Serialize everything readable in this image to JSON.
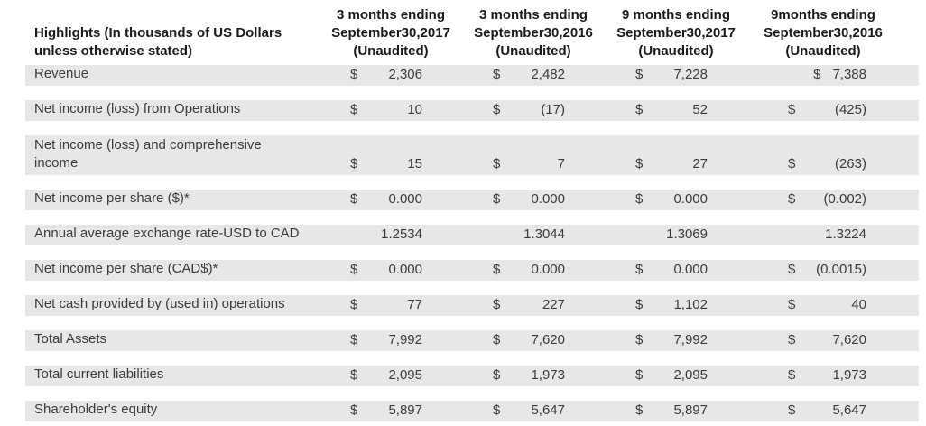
{
  "table": {
    "header": {
      "label_line1": "Highlights (In thousands of US Dollars",
      "label_line2": "unless otherwise stated)",
      "columns": [
        {
          "line1": "3 months ending",
          "line2": "September30,2017",
          "line3": "(Unaudited)"
        },
        {
          "line1": "3 months ending",
          "line2": "September30,2016",
          "line3": "(Unaudited)"
        },
        {
          "line1": "9 months ending",
          "line2": "September30,2017",
          "line3": "(Unaudited)"
        },
        {
          "line1": "9months ending",
          "line2": "September30,2016",
          "line3": "(Unaudited)"
        }
      ]
    },
    "rows": [
      {
        "label": "Revenue",
        "cells": [
          {
            "p": "$",
            "v": "2,306"
          },
          {
            "p": "$",
            "v": "2,482"
          },
          {
            "p": "$",
            "v": "7,228"
          },
          {
            "p": "$",
            "v": "7,388",
            "tight": true
          }
        ]
      },
      {
        "label": "Net income (loss) from Operations",
        "cells": [
          {
            "p": "$",
            "v": "10"
          },
          {
            "p": "$",
            "v": "(17)"
          },
          {
            "p": "$",
            "v": "52"
          },
          {
            "p": "$",
            "v": "(425)"
          }
        ]
      },
      {
        "label": "Net income (loss) and comprehensive income",
        "two_line": true,
        "cells": [
          {
            "p": "$",
            "v": "15"
          },
          {
            "p": "$",
            "v": "7"
          },
          {
            "p": "$",
            "v": "27"
          },
          {
            "p": "$",
            "v": "(263)"
          }
        ]
      },
      {
        "label": "Net income per share ($)*",
        "cells": [
          {
            "p": "$",
            "v": "0.000"
          },
          {
            "p": "$",
            "v": "0.000"
          },
          {
            "p": "$",
            "v": "0.000"
          },
          {
            "p": "$",
            "v": "(0.002)"
          }
        ]
      },
      {
        "label": "Annual average exchange rate-USD to CAD",
        "cells": [
          {
            "p": "",
            "v": "1.2534"
          },
          {
            "p": "",
            "v": "1.3044"
          },
          {
            "p": "",
            "v": "1.3069"
          },
          {
            "p": "",
            "v": "1.3224"
          }
        ]
      },
      {
        "label": "Net income per share (CAD$)*",
        "cells": [
          {
            "p": "$",
            "v": "0.000"
          },
          {
            "p": "$",
            "v": "0.000"
          },
          {
            "p": "$",
            "v": "0.000"
          },
          {
            "p": "$",
            "v": "(0.0015)"
          }
        ]
      },
      {
        "label": "Net cash provided by (used in) operations",
        "cells": [
          {
            "p": "$",
            "v": "77"
          },
          {
            "p": "$",
            "v": "227"
          },
          {
            "p": "$",
            "v": "1,102"
          },
          {
            "p": "$",
            "v": "40"
          }
        ]
      },
      {
        "label": "Total Assets",
        "cells": [
          {
            "p": "$",
            "v": "7,992"
          },
          {
            "p": "$",
            "v": "7,620"
          },
          {
            "p": "$",
            "v": "7,992"
          },
          {
            "p": "$",
            "v": "7,620"
          }
        ]
      },
      {
        "label": "Total current liabilities",
        "cells": [
          {
            "p": "$",
            "v": "2,095"
          },
          {
            "p": "$",
            "v": "1,973"
          },
          {
            "p": "$",
            "v": "2,095"
          },
          {
            "p": "$",
            "v": "1,973"
          }
        ]
      },
      {
        "label": "Shareholder's equity",
        "cells": [
          {
            "p": "$",
            "v": "5,897"
          },
          {
            "p": "$",
            "v": "5,647"
          },
          {
            "p": "$",
            "v": "5,897"
          },
          {
            "p": "$",
            "v": "5,647"
          }
        ]
      }
    ],
    "colors": {
      "row_shade": "#e7e7e7",
      "text": "#3b3b3b",
      "header_text": "#1a1a1a",
      "background": "#ffffff"
    }
  }
}
